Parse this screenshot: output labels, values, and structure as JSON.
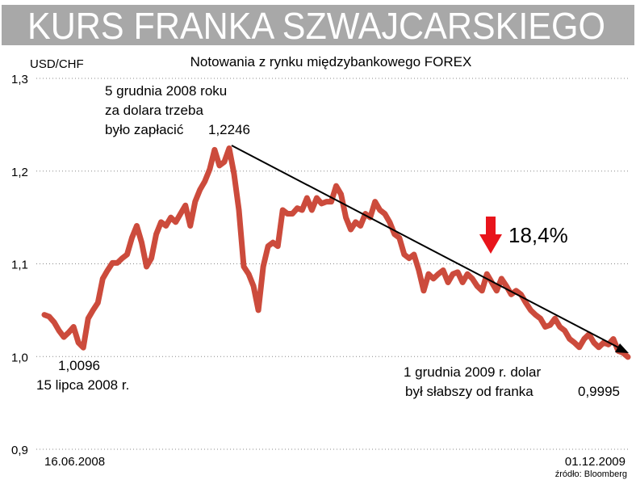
{
  "chart_data": {
    "type": "line",
    "title": "KURS FRANKA SZWAJCARSKIEGO",
    "subtitle": "Notowania z rynku międzybankowego FOREX",
    "y_label": "USD/CHF",
    "source": "źródło: Bloomberg",
    "annotations": [
      "5 grudnia 2008 roku",
      "za dolara trzeba",
      "było zapłacić",
      "1,2246",
      "1,0096",
      "15 lipca 2008 r.",
      "18,4%",
      "1 grudnia 2009 r. dolar",
      "był słabszy od franka",
      "0,9995"
    ],
    "color": "#cc4b3c",
    "grid": true,
    "ylim": [
      0.9,
      1.3
    ],
    "yticks": [
      {
        "value": 1.3,
        "label": "1,3"
      },
      {
        "value": 1.2,
        "label": "1,2"
      },
      {
        "value": 1.1,
        "label": "1,1"
      },
      {
        "value": 1.0,
        "label": "1,0"
      },
      {
        "value": 0.9,
        "label": "0,9"
      }
    ],
    "categories": [
      "16.06.2008",
      null,
      null,
      null,
      null,
      null,
      null,
      null,
      null,
      null,
      null,
      null,
      null,
      null,
      null,
      null,
      null,
      null,
      null,
      null,
      null,
      null,
      null,
      null,
      null,
      null,
      null,
      null,
      null,
      null,
      null,
      null,
      null,
      null,
      null,
      null,
      null,
      null,
      null,
      null,
      null,
      null,
      null,
      null,
      null,
      null,
      null,
      null,
      null,
      null,
      null,
      null,
      null,
      null,
      null,
      null,
      null,
      null,
      null,
      null,
      null,
      null,
      null,
      null,
      null,
      null,
      null,
      null,
      null,
      null,
      null,
      null,
      null,
      null,
      null,
      null,
      null,
      null,
      null,
      null,
      null,
      null,
      null,
      null,
      null,
      null,
      null,
      null,
      null,
      null,
      null,
      null,
      null,
      null,
      null,
      null,
      null,
      null,
      null,
      null,
      null,
      null,
      null,
      null,
      null,
      null,
      null,
      null,
      null,
      null,
      null,
      null,
      null,
      null,
      null,
      null,
      null,
      null,
      null,
      null,
      "01.12.2009"
    ],
    "values": [
      1.045,
      1.043,
      1.037,
      1.028,
      1.021,
      1.026,
      1.032,
      1.015,
      1.0096,
      1.041,
      1.05,
      1.058,
      1.084,
      1.093,
      1.101,
      1.101,
      1.106,
      1.11,
      1.128,
      1.141,
      1.123,
      1.097,
      1.106,
      1.132,
      1.145,
      1.141,
      1.15,
      1.145,
      1.154,
      1.163,
      1.141,
      1.167,
      1.18,
      1.189,
      1.202,
      1.223,
      1.206,
      1.21,
      1.2246,
      1.197,
      1.158,
      1.097,
      1.089,
      1.076,
      1.05,
      1.097,
      1.119,
      1.123,
      1.119,
      1.158,
      1.154,
      1.154,
      1.16,
      1.158,
      1.171,
      1.158,
      1.171,
      1.165,
      1.167,
      1.167,
      1.184,
      1.175,
      1.15,
      1.137,
      1.145,
      1.141,
      1.154,
      1.15,
      1.167,
      1.158,
      1.154,
      1.145,
      1.132,
      1.128,
      1.11,
      1.106,
      1.11,
      1.093,
      1.071,
      1.089,
      1.084,
      1.089,
      1.093,
      1.08,
      1.089,
      1.091,
      1.08,
      1.089,
      1.084,
      1.076,
      1.071,
      1.089,
      1.08,
      1.071,
      1.084,
      1.076,
      1.067,
      1.071,
      1.067,
      1.058,
      1.05,
      1.045,
      1.041,
      1.032,
      1.034,
      1.041,
      1.032,
      1.028,
      1.019,
      1.015,
      1.01,
      1.019,
      1.024,
      1.015,
      1.01,
      1.015,
      1.013,
      1.019,
      1.006,
      1.004,
      0.9995
    ]
  }
}
